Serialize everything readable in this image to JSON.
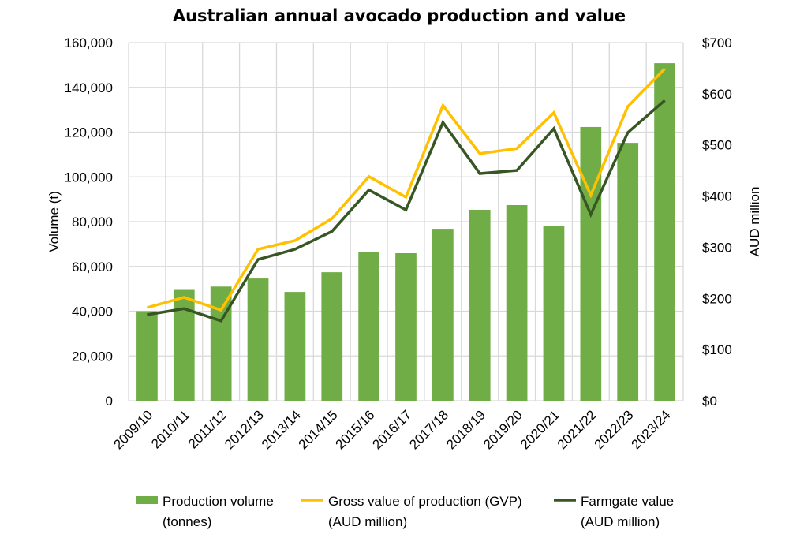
{
  "chart_data": {
    "type": "bar",
    "title": "Australian annual avocado production and value",
    "xlabel": "",
    "ylabel": "Volume (t)",
    "y2label": "AUD million",
    "ylim": [
      0,
      160000
    ],
    "y2lim": [
      0,
      700
    ],
    "grid": true,
    "legend_position": "bottom",
    "categories": [
      "2009/10",
      "2010/11",
      "2011/12",
      "2012/13",
      "2013/14",
      "2014/15",
      "2015/16",
      "2016/17",
      "2017/18",
      "2018/19",
      "2019/20",
      "2020/21",
      "2021/22",
      "2022/23",
      "2023/24"
    ],
    "y_ticks": [
      0,
      20000,
      40000,
      60000,
      80000,
      100000,
      120000,
      140000,
      160000
    ],
    "y_tick_labels": [
      "0",
      "20,000",
      "40,000",
      "60,000",
      "80,000",
      "100,000",
      "120,000",
      "140,000",
      "160,000"
    ],
    "y2_ticks": [
      0,
      100,
      200,
      300,
      400,
      500,
      600,
      700
    ],
    "y2_tick_labels": [
      "$0",
      "$100",
      "$200",
      "$300",
      "$400",
      "$500",
      "$600",
      "$700"
    ],
    "series": [
      {
        "name": "Production volume (tonnes)",
        "legend_lines": [
          "Production volume",
          "(tonnes)"
        ],
        "type": "bar",
        "axis": "left",
        "color": "#70ad47",
        "values": [
          40000,
          49500,
          51000,
          54600,
          48600,
          57400,
          66600,
          65900,
          76800,
          85300,
          87400,
          77900,
          122300,
          115200,
          150800
        ]
      },
      {
        "name": "Gross value of production (GVP) (AUD million)",
        "legend_lines": [
          "Gross value of production (GVP)",
          "(AUD million)"
        ],
        "type": "line",
        "axis": "right",
        "color": "#ffc000",
        "values": [
          182,
          202,
          177,
          296,
          313,
          356,
          438,
          398,
          577,
          483,
          493,
          563,
          402,
          575,
          649
        ]
      },
      {
        "name": "Farmgate value (AUD million)",
        "legend_lines": [
          "Farmgate value",
          "(AUD million)"
        ],
        "type": "line",
        "axis": "right",
        "color": "#375623",
        "values": [
          168,
          180,
          156,
          276,
          296,
          331,
          412,
          373,
          544,
          444,
          450,
          532,
          364,
          524,
          587
        ]
      }
    ]
  }
}
